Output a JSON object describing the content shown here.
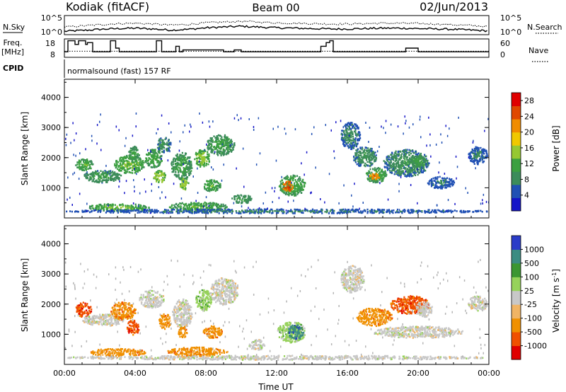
{
  "header": {
    "station": "Kodiak (fitACF)",
    "beam": "Beam 00",
    "date": "02/Jun/2013"
  },
  "nsky_panel": {
    "left_label": "N.Sky",
    "right_label": "N.Search",
    "left_ticks": [
      "10^5",
      "10^0"
    ],
    "right_ticks": [
      "10^5",
      "10^0"
    ]
  },
  "freq_panel": {
    "left_label_line1": "Freq.",
    "left_label_line2": "[MHz]",
    "right_label": "Nave",
    "left_ticks": [
      "18",
      "8"
    ],
    "right_ticks": [
      "60",
      "0"
    ]
  },
  "cpid_panel": {
    "label": "CPID",
    "text": "normalsound (fast) 157 RF"
  },
  "colors": {
    "power_scale": [
      "#1414c8",
      "#2050b4",
      "#3c8c5a",
      "#3ca040",
      "#96c832",
      "#f0c800",
      "#f08c00",
      "#e04800",
      "#e00000"
    ],
    "velocity_scale": [
      "#e00000",
      "#f05000",
      "#f09000",
      "#f0b464",
      "#c8c8c8",
      "#96d25a",
      "#3c9632",
      "#3c8c82",
      "#2a3cc8"
    ],
    "ground_scatter": "#b4b4b4"
  },
  "chart_data": [
    {
      "type": "line",
      "title": "N.Sky / N.Search",
      "x_range_hours": [
        0,
        24
      ],
      "ylim": [
        "10^0",
        "10^5"
      ],
      "log_scale": true,
      "series": [
        {
          "name": "N.Sky",
          "style": "solid",
          "x": [
            0,
            1,
            2,
            3,
            4,
            5,
            6,
            7,
            8,
            9,
            10,
            11,
            12,
            13,
            14,
            15,
            16,
            17,
            18,
            19,
            20,
            21,
            22,
            23,
            24
          ],
          "y": [
            0.9,
            1.1,
            1.4,
            1.6,
            1.7,
            1.5,
            1.2,
            1.4,
            1.8,
            2.0,
            2.2,
            2.0,
            1.8,
            1.7,
            1.6,
            1.5,
            1.5,
            1.6,
            1.7,
            1.7,
            1.6,
            1.5,
            1.4,
            1.2,
            1.0
          ]
        },
        {
          "name": "N.Search",
          "style": "dotted",
          "x": [
            0,
            1,
            2,
            3,
            4,
            5,
            6,
            7,
            8,
            9,
            10,
            11,
            12,
            13,
            14,
            15,
            16,
            17,
            18,
            19,
            20,
            21,
            22,
            23,
            24
          ],
          "y": [
            2.0,
            2.3,
            2.6,
            2.9,
            3.0,
            2.8,
            2.5,
            2.7,
            3.1,
            3.3,
            3.5,
            3.3,
            3.1,
            3.0,
            2.9,
            2.8,
            2.8,
            2.9,
            3.0,
            3.0,
            2.9,
            2.8,
            2.6,
            2.4,
            2.1
          ]
        }
      ]
    },
    {
      "type": "line",
      "title": "Freq. [MHz] / Nave",
      "x_range_hours": [
        0,
        24
      ],
      "ylim": [
        8,
        18
      ],
      "y2lim": [
        0,
        60
      ],
      "series": [
        {
          "name": "Freq.",
          "style": "step",
          "x": [
            0.0,
            0.2,
            0.2,
            0.6,
            0.6,
            0.8,
            0.8,
            1.2,
            1.2,
            1.3,
            1.3,
            1.6,
            1.6,
            2.6,
            2.6,
            2.9,
            2.9,
            3.1,
            3.1,
            5.2,
            5.2,
            5.5,
            5.5,
            6.3,
            6.3,
            6.5,
            6.5,
            6.7,
            6.7,
            9.0,
            9.0,
            9.6,
            9.6,
            10.0,
            10.0,
            14.5,
            14.5,
            14.8,
            14.8,
            15.0,
            15.0,
            15.2,
            15.2,
            19.3,
            19.3,
            20.0,
            20.0,
            24.0
          ],
          "y": [
            11,
            11,
            17,
            17,
            15,
            15,
            17,
            17,
            15,
            15,
            16,
            16,
            11,
            11,
            17,
            17,
            13,
            13,
            11,
            11,
            17,
            17,
            11,
            11,
            14,
            14,
            11,
            11,
            12,
            12,
            11,
            11,
            12,
            12,
            11,
            11,
            14,
            14,
            16,
            16,
            17,
            17,
            11,
            11,
            13,
            13,
            11,
            11
          ]
        },
        {
          "name": "Nave",
          "style": "dotted",
          "x": [
            0,
            24
          ],
          "y": [
            20,
            20
          ]
        }
      ]
    },
    {
      "type": "heatmap",
      "title": "Power [dB]",
      "xlabel": "Time UT",
      "ylabel": "Slant Range [km]",
      "x_ticks": [
        "00:00",
        "04:00",
        "08:00",
        "12:00",
        "16:00",
        "20:00",
        "00:00"
      ],
      "y_ticks": [
        "1000",
        "2000",
        "3000",
        "4000"
      ],
      "ylim": [
        0,
        4600
      ],
      "colorbar_label": "Power [dB]",
      "colorbar_ticks": [
        "4",
        "8",
        "12",
        "16",
        "20",
        "24",
        "28"
      ],
      "colorbar_range": [
        0,
        30
      ],
      "blobs": [
        {
          "t0": 0.6,
          "t1": 1.6,
          "r0": 1600,
          "r1": 2000,
          "v": 11
        },
        {
          "t0": 1.0,
          "t1": 3.2,
          "r0": 1200,
          "r1": 1600,
          "v": 9
        },
        {
          "t0": 2.8,
          "t1": 4.5,
          "r0": 1500,
          "r1": 2100,
          "v": 12
        },
        {
          "t0": 3.6,
          "t1": 4.2,
          "r0": 1900,
          "r1": 2400,
          "v": 10
        },
        {
          "t0": 4.5,
          "t1": 5.5,
          "r0": 1700,
          "r1": 2300,
          "v": 11
        },
        {
          "t0": 5.0,
          "t1": 5.7,
          "r0": 1200,
          "r1": 1600,
          "v": 14
        },
        {
          "t0": 5.2,
          "t1": 6.0,
          "r0": 2200,
          "r1": 2700,
          "v": 8
        },
        {
          "t0": 6.0,
          "t1": 7.2,
          "r0": 1300,
          "r1": 2200,
          "v": 10
        },
        {
          "t0": 6.5,
          "t1": 7.0,
          "r0": 950,
          "r1": 1350,
          "v": 14
        },
        {
          "t0": 7.3,
          "t1": 8.2,
          "r0": 1700,
          "r1": 2300,
          "v": 13
        },
        {
          "t0": 7.8,
          "t1": 8.8,
          "r0": 900,
          "r1": 1300,
          "v": 11
        },
        {
          "t0": 8.0,
          "t1": 9.6,
          "r0": 2100,
          "r1": 2800,
          "v": 10
        },
        {
          "t0": 9.4,
          "t1": 10.6,
          "r0": 500,
          "r1": 800,
          "v": 9
        },
        {
          "t0": 1.3,
          "t1": 4.8,
          "r0": 250,
          "r1": 500,
          "v": 12
        },
        {
          "t0": 5.8,
          "t1": 9.2,
          "r0": 250,
          "r1": 550,
          "v": 11
        },
        {
          "t0": 12.1,
          "t1": 13.6,
          "r0": 750,
          "r1": 1450,
          "v": 11
        },
        {
          "t0": 12.3,
          "t1": 12.9,
          "r0": 900,
          "r1": 1250,
          "v": 24
        },
        {
          "t0": 15.6,
          "t1": 16.7,
          "r0": 2300,
          "r1": 3200,
          "v": 7
        },
        {
          "t0": 16.3,
          "t1": 17.6,
          "r0": 1700,
          "r1": 2400,
          "v": 8
        },
        {
          "t0": 17.0,
          "t1": 18.2,
          "r0": 1200,
          "r1": 1700,
          "v": 11
        },
        {
          "t0": 17.2,
          "t1": 17.8,
          "r0": 1300,
          "r1": 1500,
          "v": 22
        },
        {
          "t0": 18.0,
          "t1": 20.6,
          "r0": 1400,
          "r1": 2300,
          "v": 8
        },
        {
          "t0": 19.5,
          "t1": 20.4,
          "r0": 1700,
          "r1": 2100,
          "v": 10
        },
        {
          "t0": 20.5,
          "t1": 22.0,
          "r0": 1000,
          "r1": 1400,
          "v": 6
        },
        {
          "t0": 22.8,
          "t1": 23.9,
          "r0": 1800,
          "r1": 2400,
          "v": 6
        },
        {
          "t0": 0.0,
          "t1": 24.0,
          "r0": 180,
          "r1": 320,
          "v": 6
        }
      ]
    },
    {
      "type": "heatmap",
      "title": "Velocity [m s-1]",
      "xlabel": "Time UT",
      "ylabel": "Slant Range [km]",
      "x_ticks": [
        "00:00",
        "04:00",
        "08:00",
        "12:00",
        "16:00",
        "20:00",
        "00:00"
      ],
      "y_ticks": [
        "1000",
        "2000",
        "3000",
        "4000"
      ],
      "ylim": [
        0,
        4600
      ],
      "colorbar_label": "Velocity [m s",
      "colorbar_label_sup": "-1",
      "colorbar_label_end": "]",
      "colorbar_ticks": [
        "1000",
        "500",
        "100",
        "25",
        "-25",
        "-100",
        "-500",
        "-1000"
      ],
      "blobs": [
        {
          "t0": 0.6,
          "t1": 1.5,
          "r0": 1600,
          "r1": 2100,
          "c": 1
        },
        {
          "t0": 1.0,
          "t1": 3.4,
          "r0": 1300,
          "r1": 1700,
          "c": 4
        },
        {
          "t0": 2.6,
          "t1": 4.0,
          "r0": 1500,
          "r1": 2100,
          "c": 2
        },
        {
          "t0": 3.5,
          "t1": 4.2,
          "r0": 1000,
          "r1": 1500,
          "c": 1
        },
        {
          "t0": 4.2,
          "t1": 5.6,
          "r0": 1900,
          "r1": 2500,
          "c": 4
        },
        {
          "t0": 5.3,
          "t1": 6.0,
          "r0": 1200,
          "r1": 1700,
          "c": 2
        },
        {
          "t0": 6.1,
          "t1": 7.2,
          "r0": 1200,
          "r1": 2200,
          "c": 4
        },
        {
          "t0": 6.4,
          "t1": 6.9,
          "r0": 900,
          "r1": 1300,
          "c": 2
        },
        {
          "t0": 7.4,
          "t1": 8.3,
          "r0": 1800,
          "r1": 2500,
          "c": 5
        },
        {
          "t0": 7.8,
          "t1": 8.9,
          "r0": 900,
          "r1": 1300,
          "c": 2
        },
        {
          "t0": 8.2,
          "t1": 9.8,
          "r0": 2000,
          "r1": 2900,
          "c": 4
        },
        {
          "t0": 10.4,
          "t1": 11.3,
          "r0": 500,
          "r1": 850,
          "c": 4
        },
        {
          "t0": 1.3,
          "t1": 4.6,
          "r0": 300,
          "r1": 550,
          "c": 2
        },
        {
          "t0": 5.8,
          "t1": 9.2,
          "r0": 300,
          "r1": 600,
          "c": 2
        },
        {
          "t0": 12.0,
          "t1": 13.6,
          "r0": 750,
          "r1": 1450,
          "c": 5
        },
        {
          "t0": 12.6,
          "t1": 13.5,
          "r0": 850,
          "r1": 1350,
          "c": 7
        },
        {
          "t0": 15.6,
          "t1": 16.9,
          "r0": 2400,
          "r1": 3300,
          "c": 4
        },
        {
          "t0": 16.5,
          "t1": 18.5,
          "r0": 1300,
          "r1": 1900,
          "c": 2
        },
        {
          "t0": 18.4,
          "t1": 20.6,
          "r0": 1700,
          "r1": 2300,
          "c": 1
        },
        {
          "t0": 19.8,
          "t1": 20.8,
          "r0": 1600,
          "r1": 2100,
          "c": 4
        },
        {
          "t0": 17.5,
          "t1": 22.5,
          "r0": 900,
          "r1": 1300,
          "c": 4
        },
        {
          "t0": 22.8,
          "t1": 23.9,
          "r0": 1800,
          "r1": 2300,
          "c": 4
        },
        {
          "t0": 0.0,
          "t1": 24.0,
          "r0": 180,
          "r1": 320,
          "c": 4
        }
      ]
    }
  ]
}
